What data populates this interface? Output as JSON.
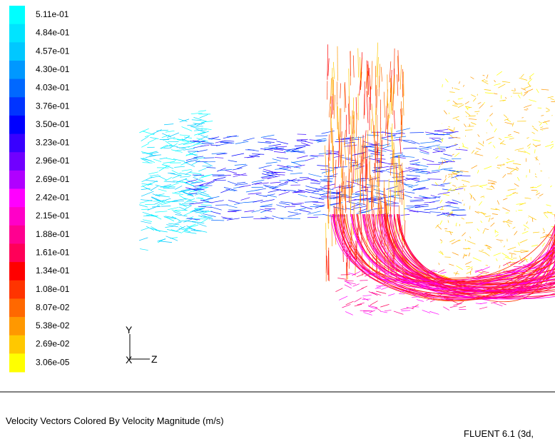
{
  "legend": {
    "levels": [
      {
        "label": "5.11e-01",
        "color": "#00ffff"
      },
      {
        "label": "4.84e-01",
        "color": "#00e4ff"
      },
      {
        "label": "4.57e-01",
        "color": "#00c8ff"
      },
      {
        "label": "4.30e-01",
        "color": "#0098ff"
      },
      {
        "label": "4.03e-01",
        "color": "#0068ff"
      },
      {
        "label": "3.76e-01",
        "color": "#0034ff"
      },
      {
        "label": "3.50e-01",
        "color": "#0000ff"
      },
      {
        "label": "3.23e-01",
        "color": "#3800ff"
      },
      {
        "label": "2.96e-01",
        "color": "#7000ff"
      },
      {
        "label": "2.69e-01",
        "color": "#b000ff"
      },
      {
        "label": "2.42e-01",
        "color": "#ff00ff"
      },
      {
        "label": "2.15e-01",
        "color": "#ff00c8"
      },
      {
        "label": "1.88e-01",
        "color": "#ff0090"
      },
      {
        "label": "1.61e-01",
        "color": "#ff0058"
      },
      {
        "label": "1.34e-01",
        "color": "#ff0000"
      },
      {
        "label": "1.08e-01",
        "color": "#ff3400"
      },
      {
        "label": "8.07e-02",
        "color": "#ff6800"
      },
      {
        "label": "5.38e-02",
        "color": "#ff9800"
      },
      {
        "label": "2.69e-02",
        "color": "#ffc800"
      },
      {
        "label": "3.06e-05",
        "color": "#ffff00"
      }
    ]
  },
  "axes": {
    "y": "Y",
    "x": "X",
    "z": "Z"
  },
  "caption": "Velocity Vectors Colored By Velocity Magnitude (m/s)",
  "version": "FLUENT 6.1 (3d,"
}
